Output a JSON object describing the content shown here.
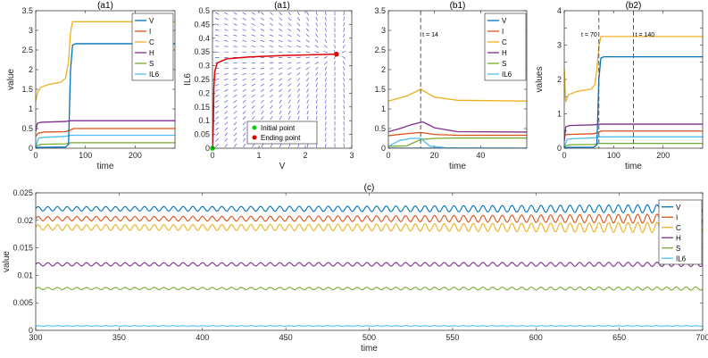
{
  "colors": {
    "V": "#0072BD",
    "I": "#D95319",
    "C": "#EDB120",
    "H": "#7E2F8E",
    "S": "#77AC30",
    "IL6": "#4DBEEE",
    "vector": "#3a3ad0",
    "trajectory": "#e00000",
    "initial": "#00d000",
    "ending": "#e00000"
  },
  "chart_data": [
    {
      "id": "a1_time",
      "type": "line",
      "title": "(a1)",
      "xlabel": "time",
      "ylabel": "value",
      "xlim": [
        0,
        280
      ],
      "ylim": [
        0,
        3.5
      ],
      "xticks": [
        0,
        100,
        200
      ],
      "yticks": [
        0,
        0.5,
        1,
        1.5,
        2,
        2.5,
        3,
        3.5
      ],
      "ytick_labels": [
        "0",
        "0.5",
        "1",
        "1.5",
        "2",
        "2.5",
        "3",
        "3.5"
      ],
      "legend": [
        "V",
        "I",
        "C",
        "H",
        "S",
        "IL6"
      ],
      "series": [
        {
          "name": "V",
          "points": [
            [
              0,
              0.02
            ],
            [
              60,
              0.03
            ],
            [
              66,
              0.1
            ],
            [
              70,
              2.0
            ],
            [
              74,
              2.62
            ],
            [
              80,
              2.66
            ],
            [
              280,
              2.66
            ]
          ]
        },
        {
          "name": "I",
          "points": [
            [
              0,
              0.3
            ],
            [
              5,
              0.38
            ],
            [
              15,
              0.41
            ],
            [
              60,
              0.42
            ],
            [
              70,
              0.46
            ],
            [
              76,
              0.5
            ],
            [
              280,
              0.5
            ]
          ]
        },
        {
          "name": "C",
          "points": [
            [
              0,
              1.2
            ],
            [
              4,
              1.42
            ],
            [
              10,
              1.55
            ],
            [
              25,
              1.62
            ],
            [
              50,
              1.68
            ],
            [
              60,
              1.78
            ],
            [
              66,
              2.2
            ],
            [
              70,
              2.95
            ],
            [
              74,
              3.22
            ],
            [
              280,
              3.22
            ]
          ]
        },
        {
          "name": "H",
          "points": [
            [
              0,
              0.42
            ],
            [
              3,
              0.63
            ],
            [
              10,
              0.66
            ],
            [
              60,
              0.68
            ],
            [
              70,
              0.7
            ],
            [
              280,
              0.7
            ]
          ]
        },
        {
          "name": "S",
          "points": [
            [
              0,
              0.05
            ],
            [
              10,
              0.1
            ],
            [
              60,
              0.11
            ],
            [
              70,
              0.14
            ],
            [
              280,
              0.14
            ]
          ]
        },
        {
          "name": "IL6",
          "points": [
            [
              0,
              0.05
            ],
            [
              6,
              0.26
            ],
            [
              20,
              0.28
            ],
            [
              60,
              0.3
            ],
            [
              70,
              0.33
            ],
            [
              280,
              0.33
            ]
          ]
        }
      ]
    },
    {
      "id": "a1_phase",
      "type": "line",
      "title": "(a1)",
      "xlabel": "V",
      "ylabel": "IL6",
      "xlim": [
        0,
        3
      ],
      "ylim": [
        0,
        0.5
      ],
      "xticks": [
        0,
        1,
        2,
        3
      ],
      "yticks": [
        0,
        0.05,
        0.1,
        0.15,
        0.2,
        0.25,
        0.3,
        0.35,
        0.4,
        0.45,
        0.5
      ],
      "ytick_labels": [
        "0",
        "0.05",
        "0.1",
        "0.15",
        "0.2",
        "0.25",
        "0.3",
        "0.35",
        "0.4",
        "0.45",
        "0.5"
      ],
      "legend": [
        "Initial point",
        "Ending point"
      ],
      "trajectory": [
        [
          0.0,
          0.0
        ],
        [
          0.02,
          0.1
        ],
        [
          0.03,
          0.22
        ],
        [
          0.05,
          0.28
        ],
        [
          0.1,
          0.31
        ],
        [
          0.3,
          0.325
        ],
        [
          0.8,
          0.332
        ],
        [
          1.5,
          0.337
        ],
        [
          2.2,
          0.34
        ],
        [
          2.67,
          0.342
        ]
      ],
      "initial_point": [
        0.0,
        0.0
      ],
      "ending_point": [
        2.67,
        0.342
      ]
    },
    {
      "id": "b1",
      "type": "line",
      "title": "(b1)",
      "xlabel": "time",
      "ylabel": "",
      "xlim": [
        0,
        60
      ],
      "ylim": [
        0,
        3.5
      ],
      "xticks": [
        0,
        20,
        40
      ],
      "yticks": [
        0,
        0.5,
        1,
        1.5,
        2,
        2.5,
        3,
        3.5
      ],
      "ytick_labels": [
        "0",
        "0.5",
        "1",
        "1.5",
        "2",
        "2.5",
        "3",
        "3.5"
      ],
      "legend": [
        "V",
        "I",
        "C",
        "H",
        "S",
        "IL6"
      ],
      "annotation": {
        "text": "t = 14",
        "x": 14
      },
      "series": [
        {
          "name": "V",
          "points": [
            [
              0,
              0.0
            ],
            [
              60,
              0.0
            ]
          ]
        },
        {
          "name": "I",
          "points": [
            [
              0,
              0.32
            ],
            [
              8,
              0.37
            ],
            [
              14,
              0.4
            ],
            [
              20,
              0.35
            ],
            [
              30,
              0.33
            ],
            [
              60,
              0.33
            ]
          ]
        },
        {
          "name": "C",
          "points": [
            [
              0,
              1.2
            ],
            [
              8,
              1.33
            ],
            [
              14,
              1.5
            ],
            [
              20,
              1.3
            ],
            [
              30,
              1.22
            ],
            [
              60,
              1.2
            ]
          ]
        },
        {
          "name": "H",
          "points": [
            [
              0,
              0.42
            ],
            [
              5,
              0.5
            ],
            [
              10,
              0.6
            ],
            [
              15,
              0.67
            ],
            [
              20,
              0.52
            ],
            [
              30,
              0.42
            ],
            [
              60,
              0.41
            ]
          ]
        },
        {
          "name": "S",
          "points": [
            [
              0,
              0.05
            ],
            [
              8,
              0.06
            ],
            [
              14,
              0.22
            ],
            [
              20,
              0.25
            ],
            [
              30,
              0.26
            ],
            [
              60,
              0.26
            ]
          ]
        },
        {
          "name": "IL6",
          "points": [
            [
              0,
              0.05
            ],
            [
              5,
              0.2
            ],
            [
              10,
              0.25
            ],
            [
              14,
              0.25
            ],
            [
              18,
              0.05
            ],
            [
              25,
              0.01
            ],
            [
              60,
              0.0
            ]
          ]
        }
      ]
    },
    {
      "id": "b2",
      "type": "line",
      "title": "(b2)",
      "xlabel": "time",
      "ylabel": "values",
      "xlim": [
        0,
        280
      ],
      "ylim": [
        0,
        4
      ],
      "xticks": [
        0,
        100,
        200
      ],
      "yticks": [
        0,
        0.5,
        1,
        1.5,
        2,
        2.5,
        3,
        3.5,
        4
      ],
      "ytick_labels": [
        "0",
        "",
        "1",
        "",
        "2",
        "",
        "3",
        "",
        "4"
      ],
      "annotations": [
        {
          "text": "t = 70",
          "x": 70
        },
        {
          "text": "t = 140",
          "x": 140
        }
      ],
      "series": [
        {
          "name": "V",
          "points": [
            [
              0,
              0.02
            ],
            [
              60,
              0.03
            ],
            [
              66,
              0.1
            ],
            [
              70,
              2.0
            ],
            [
              74,
              2.62
            ],
            [
              80,
              2.66
            ],
            [
              280,
              2.66
            ]
          ]
        },
        {
          "name": "I",
          "points": [
            [
              0,
              0.35
            ],
            [
              5,
              0.4
            ],
            [
              60,
              0.42
            ],
            [
              70,
              0.47
            ],
            [
              76,
              0.5
            ],
            [
              280,
              0.5
            ]
          ]
        },
        {
          "name": "C",
          "points": [
            [
              0,
              2.3
            ],
            [
              3,
              1.35
            ],
            [
              8,
              1.55
            ],
            [
              25,
              1.65
            ],
            [
              55,
              1.72
            ],
            [
              62,
              1.85
            ],
            [
              66,
              2.3
            ],
            [
              70,
              2.95
            ],
            [
              74,
              3.25
            ],
            [
              280,
              3.25
            ]
          ]
        },
        {
          "name": "H",
          "points": [
            [
              0,
              0.2
            ],
            [
              3,
              0.62
            ],
            [
              10,
              0.66
            ],
            [
              60,
              0.68
            ],
            [
              70,
              0.7
            ],
            [
              280,
              0.7
            ]
          ]
        },
        {
          "name": "S",
          "points": [
            [
              0,
              0.05
            ],
            [
              10,
              0.1
            ],
            [
              60,
              0.11
            ],
            [
              70,
              0.14
            ],
            [
              280,
              0.14
            ]
          ]
        },
        {
          "name": "IL6",
          "points": [
            [
              0,
              0.05
            ],
            [
              6,
              0.26
            ],
            [
              20,
              0.28
            ],
            [
              60,
              0.3
            ],
            [
              70,
              0.33
            ],
            [
              280,
              0.33
            ]
          ]
        }
      ]
    },
    {
      "id": "c",
      "type": "line",
      "title": "(c)",
      "xlabel": "time",
      "ylabel": "value",
      "xlim": [
        300,
        700
      ],
      "ylim": [
        0,
        0.025
      ],
      "xticks": [
        300,
        350,
        400,
        450,
        500,
        550,
        600,
        650,
        700
      ],
      "yticks": [
        0,
        0.005,
        0.01,
        0.015,
        0.02,
        0.025
      ],
      "ytick_labels": [
        "0",
        "0.005",
        "0.01",
        "0.015",
        "0.02",
        "0.025"
      ],
      "legend": [
        "V",
        "I",
        "C",
        "H",
        "S",
        "IL6"
      ],
      "oscillation": {
        "period": 5.8
      },
      "series": [
        {
          "name": "V",
          "mean": 0.0221,
          "amp_start": 0.0004,
          "amp_end": 0.0008
        },
        {
          "name": "I",
          "mean": 0.0203,
          "amp_start": 0.0004,
          "amp_end": 0.0009
        },
        {
          "name": "C",
          "mean": 0.0187,
          "amp_start": 0.0005,
          "amp_end": 0.001
        },
        {
          "name": "H",
          "mean": 0.012,
          "amp_start": 0.0003,
          "amp_end": 0.0004
        },
        {
          "name": "S",
          "mean": 0.0076,
          "amp_start": 0.0002,
          "amp_end": 0.0003
        },
        {
          "name": "IL6",
          "mean": 0.0008,
          "amp_start": 5e-05,
          "amp_end": 5e-05
        }
      ]
    }
  ]
}
